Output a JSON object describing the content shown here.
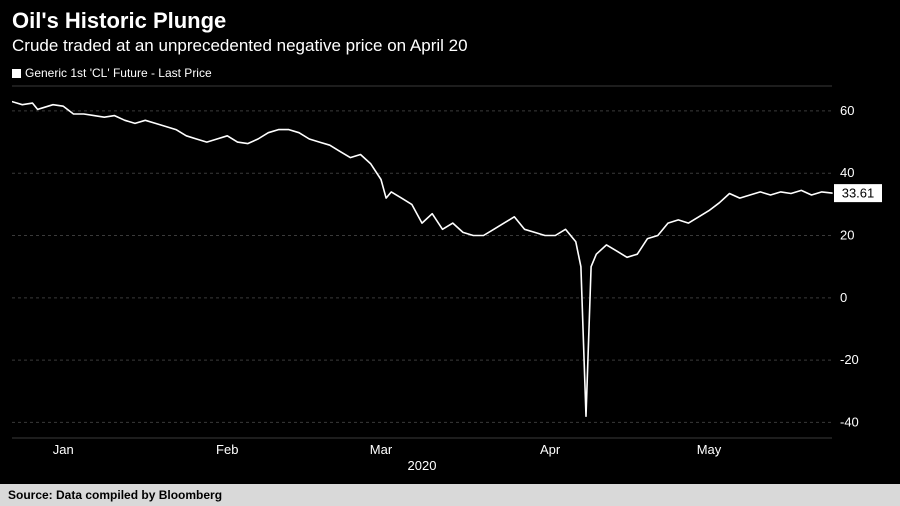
{
  "title": "Oil's Historic Plunge",
  "subtitle": "Crude traded at an unprecedented negative price on April 20",
  "legend_label": "Generic 1st 'CL' Future - Last Price",
  "footer": "Source: Data compiled by Bloomberg",
  "year_label": "2020",
  "chart": {
    "type": "line",
    "background_color": "#000000",
    "grid_color": "#3a3a3a",
    "line_color": "#ffffff",
    "line_width": 1.6,
    "text_color": "#ffffff",
    "axis_fontsize": 13,
    "title_fontsize": 22,
    "subtitle_fontsize": 17,
    "legend_fontsize": 12,
    "footer_bg": "#d9d9d9",
    "footer_text_color": "#000000",
    "x_domain": [
      0,
      160
    ],
    "y_domain": [
      -45,
      68
    ],
    "y_ticks": [
      -40,
      -20,
      0,
      20,
      40,
      60
    ],
    "x_ticks": [
      {
        "pos": 10,
        "label": "Jan"
      },
      {
        "pos": 42,
        "label": "Feb"
      },
      {
        "pos": 72,
        "label": "Mar"
      },
      {
        "pos": 105,
        "label": "Apr"
      },
      {
        "pos": 136,
        "label": "May"
      }
    ],
    "last_value": 33.61,
    "last_label": "33.61",
    "series": [
      [
        0,
        63
      ],
      [
        2,
        62
      ],
      [
        4,
        62.5
      ],
      [
        5,
        60.5
      ],
      [
        6,
        61
      ],
      [
        8,
        62
      ],
      [
        10,
        61.5
      ],
      [
        12,
        59
      ],
      [
        14,
        59
      ],
      [
        16,
        58.5
      ],
      [
        18,
        58
      ],
      [
        20,
        58.5
      ],
      [
        22,
        57
      ],
      [
        24,
        56
      ],
      [
        26,
        57
      ],
      [
        28,
        56
      ],
      [
        30,
        55
      ],
      [
        32,
        54
      ],
      [
        34,
        52
      ],
      [
        36,
        51
      ],
      [
        38,
        50
      ],
      [
        40,
        51
      ],
      [
        42,
        52
      ],
      [
        44,
        50
      ],
      [
        46,
        49.5
      ],
      [
        48,
        51
      ],
      [
        50,
        53
      ],
      [
        52,
        54
      ],
      [
        54,
        54
      ],
      [
        56,
        53
      ],
      [
        58,
        51
      ],
      [
        60,
        50
      ],
      [
        62,
        49
      ],
      [
        64,
        47
      ],
      [
        66,
        45
      ],
      [
        68,
        46
      ],
      [
        70,
        43
      ],
      [
        72,
        38
      ],
      [
        73,
        32
      ],
      [
        74,
        34
      ],
      [
        76,
        32
      ],
      [
        78,
        30
      ],
      [
        80,
        24
      ],
      [
        82,
        27
      ],
      [
        84,
        22
      ],
      [
        86,
        24
      ],
      [
        88,
        21
      ],
      [
        90,
        20
      ],
      [
        92,
        20
      ],
      [
        94,
        22
      ],
      [
        96,
        24
      ],
      [
        98,
        26
      ],
      [
        100,
        22
      ],
      [
        102,
        21
      ],
      [
        104,
        20
      ],
      [
        106,
        20
      ],
      [
        108,
        22
      ],
      [
        110,
        18
      ],
      [
        111,
        10
      ],
      [
        112,
        -38
      ],
      [
        113,
        10
      ],
      [
        114,
        14
      ],
      [
        116,
        17
      ],
      [
        118,
        15
      ],
      [
        120,
        13
      ],
      [
        122,
        14
      ],
      [
        124,
        19
      ],
      [
        126,
        20
      ],
      [
        128,
        24
      ],
      [
        130,
        25
      ],
      [
        132,
        24
      ],
      [
        134,
        26
      ],
      [
        136,
        28
      ],
      [
        138,
        30.5
      ],
      [
        140,
        33.5
      ],
      [
        142,
        32
      ],
      [
        144,
        33
      ],
      [
        146,
        34
      ],
      [
        148,
        33
      ],
      [
        150,
        34
      ],
      [
        152,
        33.5
      ],
      [
        154,
        34.5
      ],
      [
        156,
        33
      ],
      [
        158,
        34
      ],
      [
        160,
        33.61
      ]
    ]
  }
}
